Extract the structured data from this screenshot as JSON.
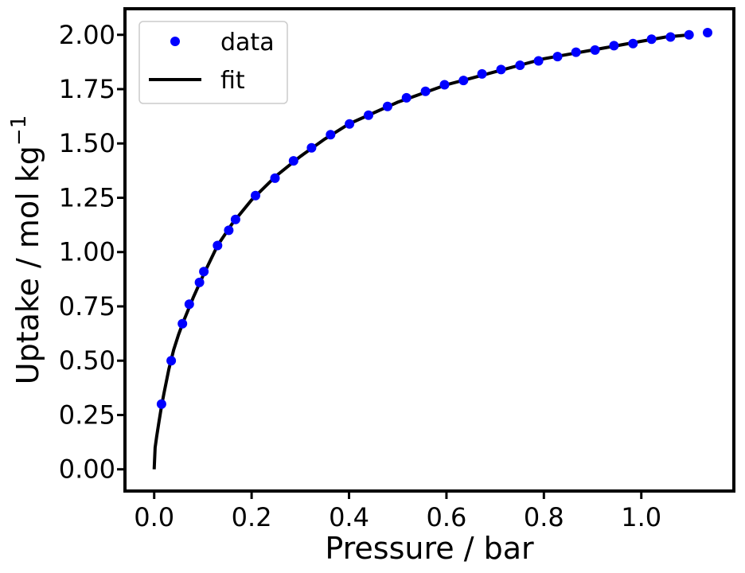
{
  "chart_data": {
    "type": "scatter",
    "xlabel": "Pressure / bar",
    "ylabel_main": "Uptake / mol kg",
    "ylabel_sup": "−1",
    "xlim": [
      -0.06,
      1.19
    ],
    "ylim": [
      -0.1,
      2.12
    ],
    "x_ticks": [
      0.0,
      0.2,
      0.4,
      0.6,
      0.8,
      1.0
    ],
    "x_tick_labels": [
      "0.0",
      "0.2",
      "0.4",
      "0.6",
      "0.8",
      "1.0"
    ],
    "y_ticks": [
      0.0,
      0.25,
      0.5,
      0.75,
      1.0,
      1.25,
      1.5,
      1.75,
      2.0
    ],
    "y_tick_labels": [
      "0.00",
      "0.25",
      "0.50",
      "0.75",
      "1.00",
      "1.25",
      "1.50",
      "1.75",
      "2.00"
    ],
    "grid": false,
    "legend_position": "top-left",
    "legend": [
      {
        "label": "data",
        "marker": "dot",
        "color": "#0000ff"
      },
      {
        "label": "fit",
        "marker": "line",
        "color": "#000000"
      }
    ],
    "series": [
      {
        "name": "data",
        "kind": "scatter",
        "color": "#0000ff",
        "x": [
          0.015,
          0.035,
          0.058,
          0.072,
          0.093,
          0.102,
          0.13,
          0.153,
          0.167,
          0.208,
          0.248,
          0.286,
          0.323,
          0.362,
          0.401,
          0.44,
          0.479,
          0.518,
          0.557,
          0.596,
          0.635,
          0.673,
          0.712,
          0.751,
          0.789,
          0.828,
          0.866,
          0.905,
          0.944,
          0.983,
          1.021,
          1.06,
          1.098,
          1.136
        ],
        "y": [
          0.3,
          0.5,
          0.67,
          0.76,
          0.86,
          0.91,
          1.03,
          1.1,
          1.15,
          1.26,
          1.34,
          1.42,
          1.48,
          1.54,
          1.59,
          1.63,
          1.67,
          1.71,
          1.74,
          1.77,
          1.79,
          1.82,
          1.84,
          1.86,
          1.88,
          1.9,
          1.92,
          1.93,
          1.95,
          1.96,
          1.98,
          1.99,
          2.0,
          2.01
        ]
      },
      {
        "name": "fit",
        "kind": "line",
        "color": "#000000",
        "x": [
          0.0,
          0.002,
          0.005,
          0.01,
          0.015,
          0.02,
          0.03,
          0.04,
          0.05,
          0.06,
          0.08,
          0.1,
          0.13,
          0.16,
          0.2,
          0.25,
          0.3,
          0.35,
          0.4,
          0.45,
          0.5,
          0.55,
          0.6,
          0.65,
          0.7,
          0.75,
          0.8,
          0.85,
          0.9,
          0.95,
          1.0,
          1.05,
          1.1
        ],
        "y": [
          0.0,
          0.1,
          0.15,
          0.22,
          0.29,
          0.35,
          0.46,
          0.55,
          0.62,
          0.68,
          0.79,
          0.89,
          1.03,
          1.13,
          1.24,
          1.35,
          1.44,
          1.52,
          1.59,
          1.64,
          1.69,
          1.73,
          1.77,
          1.8,
          1.83,
          1.86,
          1.89,
          1.91,
          1.93,
          1.95,
          1.97,
          1.99,
          2.0
        ]
      }
    ]
  }
}
